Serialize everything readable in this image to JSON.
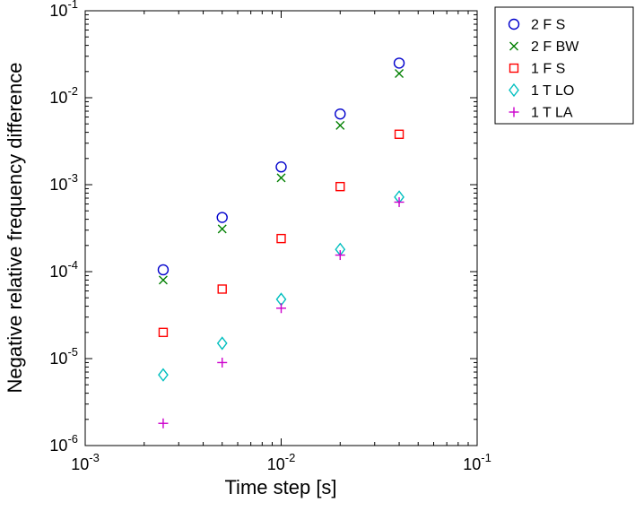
{
  "figure": {
    "background": "#ffffff",
    "axis_color": "#000000"
  },
  "chart_data": {
    "type": "scatter",
    "title": "",
    "xlabel": "Time step [s]",
    "ylabel": "Negative relative frequency difference",
    "x_scale": "log",
    "y_scale": "log",
    "xlim": [
      0.001,
      0.1
    ],
    "ylim": [
      1e-06,
      0.1
    ],
    "x_tick_exponents": [
      -3,
      -2,
      -1
    ],
    "y_tick_exponents": [
      -6,
      -5,
      -4,
      -3,
      -2,
      -1
    ],
    "tick_label_base": "10",
    "grid": false,
    "legend_position": "outside-top-right",
    "x": [
      0.0025,
      0.005,
      0.01,
      0.02,
      0.04
    ],
    "series": [
      {
        "name": "2 F S",
        "marker": "circle",
        "color": "#0000cc",
        "values": [
          0.000105,
          0.00042,
          0.0016,
          0.0065,
          0.025
        ]
      },
      {
        "name": "2 F BW",
        "marker": "x",
        "color": "#007f00",
        "values": [
          8e-05,
          0.00031,
          0.0012,
          0.0048,
          0.019
        ]
      },
      {
        "name": "1 F S",
        "marker": "square",
        "color": "#ff0000",
        "values": [
          2e-05,
          6.3e-05,
          0.00024,
          0.00095,
          0.0038
        ]
      },
      {
        "name": "1 T LO",
        "marker": "diamond",
        "color": "#00bfbf",
        "values": [
          6.5e-06,
          1.5e-05,
          4.8e-05,
          0.00018,
          0.00072
        ]
      },
      {
        "name": "1 T LA",
        "marker": "plus",
        "color": "#cc00cc",
        "values": [
          1.8e-06,
          9e-06,
          3.8e-05,
          0.000155,
          0.00063
        ]
      }
    ]
  }
}
